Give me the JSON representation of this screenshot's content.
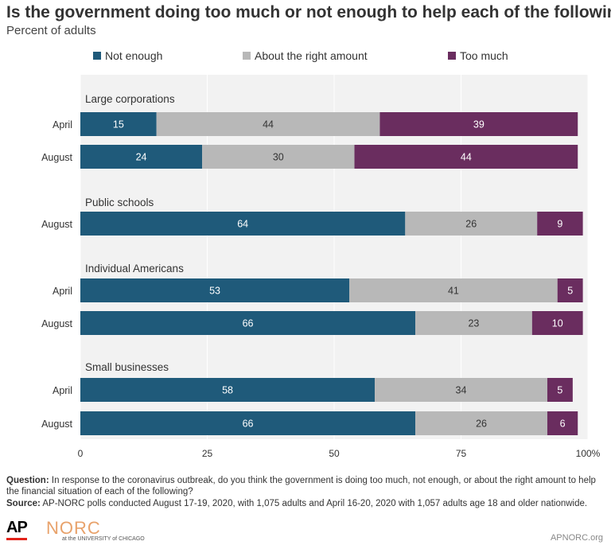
{
  "title": "Is the government doing too much or not enough to help each of the following?",
  "subtitle": "Percent of adults",
  "legend": [
    {
      "label": "Not enough",
      "color": "#1f5a7a"
    },
    {
      "label": "About the right amount",
      "color": "#b8b8b8"
    },
    {
      "label": "Too much",
      "color": "#6a2d5f"
    }
  ],
  "chart_data": {
    "type": "bar",
    "orientation": "horizontal",
    "stacked": true,
    "xlim": [
      0,
      100
    ],
    "xticks": [
      "0",
      "25",
      "50",
      "75",
      "100%"
    ],
    "grid": true,
    "legend_position": "top",
    "series_names": [
      "Not enough",
      "About the right amount",
      "Too much"
    ],
    "groups": [
      {
        "label": "Large corporations",
        "bars": [
          {
            "label": "April",
            "values": [
              15,
              44,
              39
            ]
          },
          {
            "label": "August",
            "values": [
              24,
              30,
              44
            ]
          }
        ]
      },
      {
        "label": "Public schools",
        "bars": [
          {
            "label": "August",
            "values": [
              64,
              26,
              9
            ]
          }
        ]
      },
      {
        "label": "Individual Americans",
        "bars": [
          {
            "label": "April",
            "values": [
              53,
              41,
              5
            ]
          },
          {
            "label": "August",
            "values": [
              66,
              23,
              10
            ]
          }
        ]
      },
      {
        "label": "Small businesses",
        "bars": [
          {
            "label": "April",
            "values": [
              58,
              34,
              5
            ]
          },
          {
            "label": "August",
            "values": [
              66,
              26,
              6
            ]
          }
        ]
      }
    ]
  },
  "footer": {
    "question_label": "Question:",
    "question": "In response to the coronavirus outbreak, do you think the government is doing too much, not enough, or about the right amount to help the financial situation of each of the following?",
    "source_label": "Source:",
    "source": "AP-NORC polls conducted August 17-19, 2020, with 1,075 adults and April 16-20, 2020 with 1,057 adults age 18 and older nationwide."
  },
  "branding": {
    "ap": "AP",
    "norc": "NORC",
    "norc_sub": "at the UNIVERSITY of CHICAGO",
    "site": "APNORC.org"
  }
}
